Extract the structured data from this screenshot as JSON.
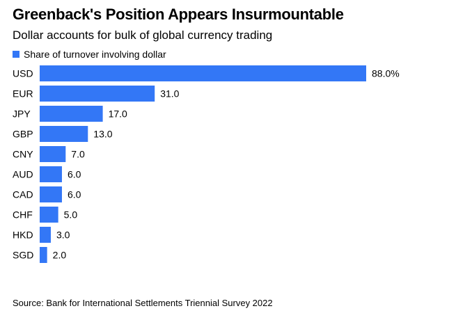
{
  "chart_data": {
    "type": "bar",
    "orientation": "horizontal",
    "title": "Greenback's Position Appears Insurmountable",
    "subtitle": "Dollar accounts for bulk of global currency trading",
    "categories": [
      "USD",
      "EUR",
      "JPY",
      "GBP",
      "CNY",
      "AUD",
      "CAD",
      "CHF",
      "HKD",
      "SGD"
    ],
    "series": [
      {
        "name": "Share of turnover involving dollar",
        "values": [
          88.0,
          31.0,
          17.0,
          13.0,
          7.0,
          6.0,
          6.0,
          5.0,
          3.0,
          2.0
        ],
        "labels": [
          "88.0%",
          "31.0",
          "17.0",
          "13.0",
          "7.0",
          "6.0",
          "6.0",
          "5.0",
          "3.0",
          "2.0"
        ]
      }
    ],
    "xlim": [
      0,
      88
    ],
    "grid": false,
    "legend_position": "top-left",
    "colors": {
      "bar": "#3377f6"
    },
    "source": "Source: Bank for International Settlements Triennial Survey 2022"
  }
}
